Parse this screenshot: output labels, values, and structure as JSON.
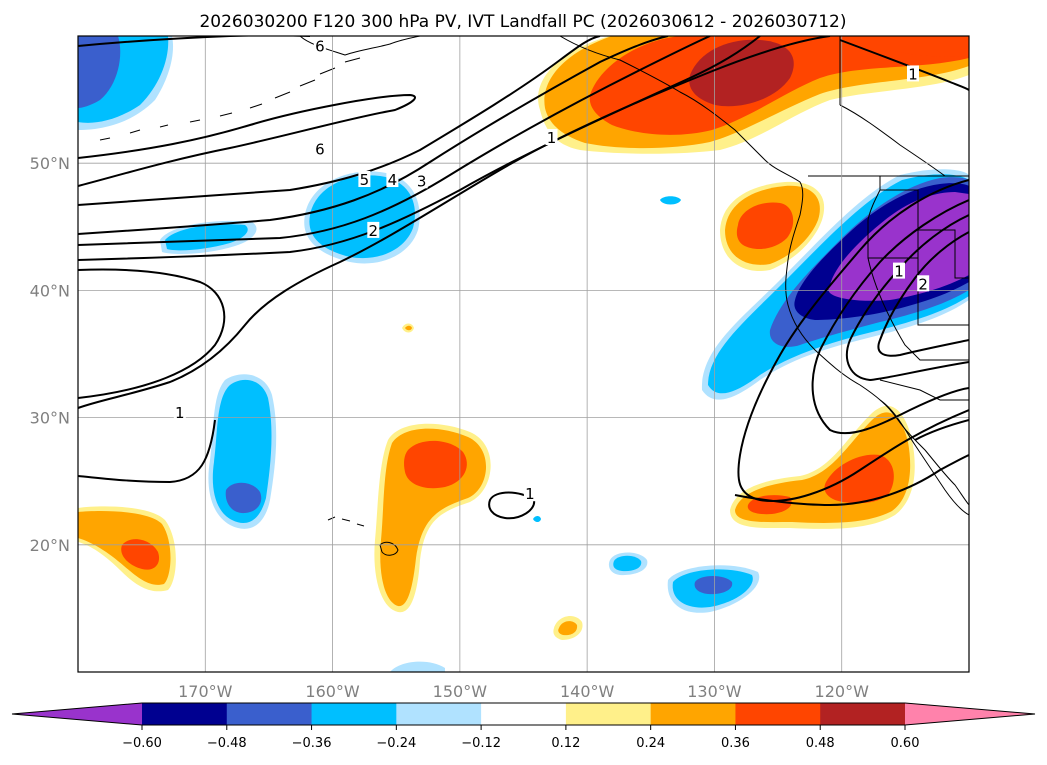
{
  "chart_data": {
    "type": "heatmap",
    "title": "2026030200 F120 300 hPa PV, IVT Landfall PC (2026030612 - 2026030712)",
    "xlabel": "",
    "ylabel": "",
    "lon_range": [
      -180,
      -110
    ],
    "lat_range": [
      10,
      60
    ],
    "x_ticks": [
      {
        "value": -170,
        "label": "170°W"
      },
      {
        "value": -160,
        "label": "160°W"
      },
      {
        "value": -150,
        "label": "150°W"
      },
      {
        "value": -140,
        "label": "140°W"
      },
      {
        "value": -130,
        "label": "130°W"
      },
      {
        "value": -120,
        "label": "120°W"
      }
    ],
    "y_ticks": [
      {
        "value": 20,
        "label": "20°N"
      },
      {
        "value": 30,
        "label": "30°N"
      },
      {
        "value": 40,
        "label": "40°N"
      },
      {
        "value": 50,
        "label": "50°N"
      }
    ],
    "grid": true,
    "colorbar": {
      "orientation": "horizontal",
      "position": "bottom",
      "extend": "both",
      "boundaries": [
        "-0.60",
        "-0.48",
        "-0.36",
        "-0.24",
        "-0.12",
        "0.12",
        "0.24",
        "0.36",
        "0.48",
        "0.60"
      ],
      "colors": [
        "#9933cc",
        "#000090",
        "#3a5fcd",
        "#00bfff",
        "#b0e2ff",
        "#ffffff",
        "#fff08a",
        "#ffa500",
        "#ff4500",
        "#b22222",
        "#ff82ab"
      ]
    },
    "pv_contours": {
      "labels": [
        {
          "text": "6",
          "lon": -161.0,
          "lat": 59.1
        },
        {
          "text": "6",
          "lon": -161.0,
          "lat": 51.0
        },
        {
          "text": "5",
          "lon": -157.5,
          "lat": 48.6
        },
        {
          "text": "4",
          "lon": -155.3,
          "lat": 48.6
        },
        {
          "text": "3",
          "lon": -153.0,
          "lat": 48.5
        },
        {
          "text": "2",
          "lon": -156.8,
          "lat": 44.6
        },
        {
          "text": "1",
          "lon": -142.8,
          "lat": 51.9
        },
        {
          "text": "1",
          "lon": -172.0,
          "lat": 30.3
        },
        {
          "text": "1",
          "lon": -144.5,
          "lat": 23.9
        },
        {
          "text": "1",
          "lon": -114.4,
          "lat": 56.9
        },
        {
          "text": "1",
          "lon": -115.5,
          "lat": 41.4
        },
        {
          "text": "2",
          "lon": -113.6,
          "lat": 40.4
        }
      ]
    }
  }
}
